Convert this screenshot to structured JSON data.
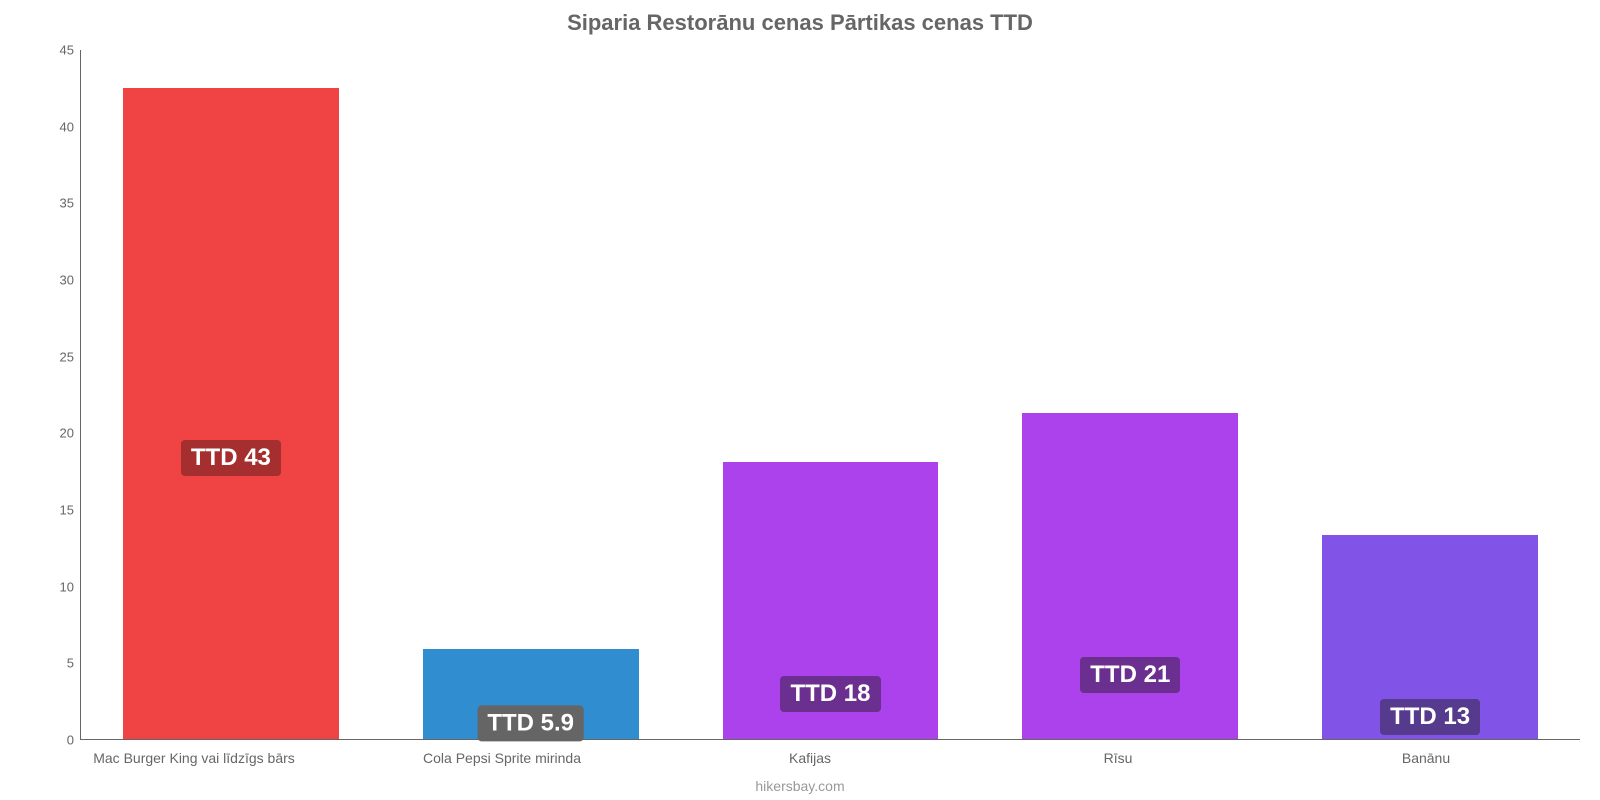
{
  "chart": {
    "type": "bar",
    "title": "Siparia Restorānu cenas Pārtikas cenas TTD",
    "title_fontsize": 22,
    "title_color": "#666666",
    "attribution": "hikersbay.com",
    "background_color": "#ffffff",
    "axis_color": "#666666",
    "ylim": [
      0,
      45
    ],
    "ytick_step": 5,
    "bar_width": 0.72,
    "categories": [
      "Mac Burger King vai līdzīgs bārs",
      "Cola Pepsi Sprite mirinda",
      "Kafijas",
      "Rīsu",
      "Banānu"
    ],
    "values": [
      42.5,
      5.9,
      18.1,
      21.3,
      13.3
    ],
    "value_labels": [
      "TTD 43",
      "TTD 5.9",
      "TTD 18",
      "TTD 21",
      "TTD 13"
    ],
    "bar_colors": [
      "#ef4344",
      "#2f8dd0",
      "#ab42eb",
      "#ab42eb",
      "#8153e7"
    ],
    "label_bg_colors": [
      "#a52e2f",
      "#656565",
      "#6a2f8f",
      "#6a2f8f",
      "#553a8e"
    ],
    "label_fontsize": 24,
    "xlabel_fontsize": 14,
    "ylabel_fontsize": 13
  }
}
